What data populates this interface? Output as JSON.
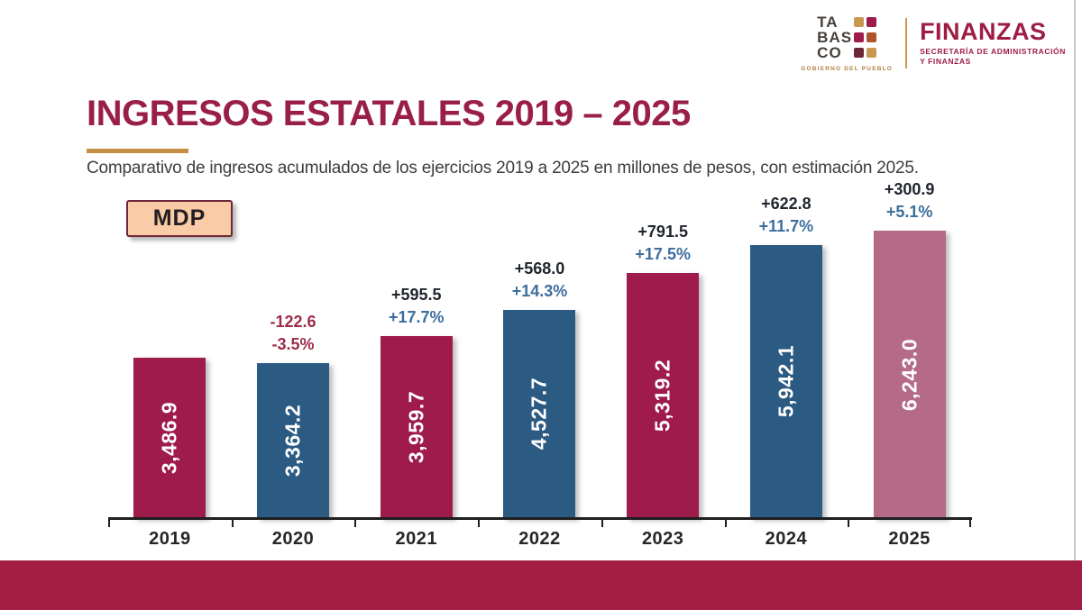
{
  "page": {
    "title": "INGRESOS ESTATALES 2019 – 2025",
    "subtitle": "Comparativo de ingresos acumulados de los ejercicios 2019 a 2025 en millones de pesos, con estimación 2025.",
    "unit_badge": "MDP"
  },
  "header": {
    "tabasco_logo": {
      "line1": "TA",
      "line2": "BAS",
      "line3": "CO",
      "tagline": "GOBIERNO DEL PUEBLO"
    },
    "finanzas_brand": {
      "name": "FINANZAS",
      "subtitle_line1": "SECRETARÍA DE ADMINISTRACIÓN",
      "subtitle_line2": "Y FINANZAS"
    }
  },
  "chart_data": {
    "type": "bar",
    "title": "INGRESOS ESTATALES 2019 – 2025",
    "unit": "MDP (millones de pesos)",
    "categories": [
      "2019",
      "2020",
      "2021",
      "2022",
      "2023",
      "2024",
      "2025"
    ],
    "values": [
      3486.9,
      3364.2,
      3959.7,
      4527.7,
      5319.2,
      5942.1,
      6243.0
    ],
    "value_labels": [
      "3,486.9",
      "3,364.2",
      "3,959.7",
      "4,527.7",
      "5,319.2",
      "5,942.1",
      "6,243.0"
    ],
    "delta_labels": [
      "",
      "-122.6",
      "+595.5",
      "+568.0",
      "+791.5",
      "+622.8",
      "+300.9"
    ],
    "pct_labels": [
      "",
      "-3.5%",
      "+17.7%",
      "+14.3%",
      "+17.5%",
      "+11.7%",
      "+5.1%"
    ],
    "bar_colors": [
      "#9e1b4b",
      "#2b5a82",
      "#9e1b4b",
      "#2b5a82",
      "#9e1b4b",
      "#2b5a82",
      "#b56a87"
    ],
    "label_is_negative": [
      false,
      true,
      false,
      false,
      false,
      false,
      false
    ],
    "xlabel": "",
    "ylabel": "",
    "ylim": [
      0,
      6500
    ],
    "grid": false,
    "legend": false
  },
  "colors": {
    "maroon_bar": "#9e1b4b",
    "blue_bar": "#2b5a82",
    "pink_estimate_bar": "#b56a87",
    "title_maroon": "#991f47",
    "footer_band": "#a31e45",
    "accent_gold": "#c59045",
    "delta_text_dark": "#20262e",
    "pct_text_blue": "#3c6e9e",
    "negative_text_maroon": "#9e2b49",
    "mdp_fill": "#f9cba6",
    "mdp_border": "#6e2639"
  }
}
